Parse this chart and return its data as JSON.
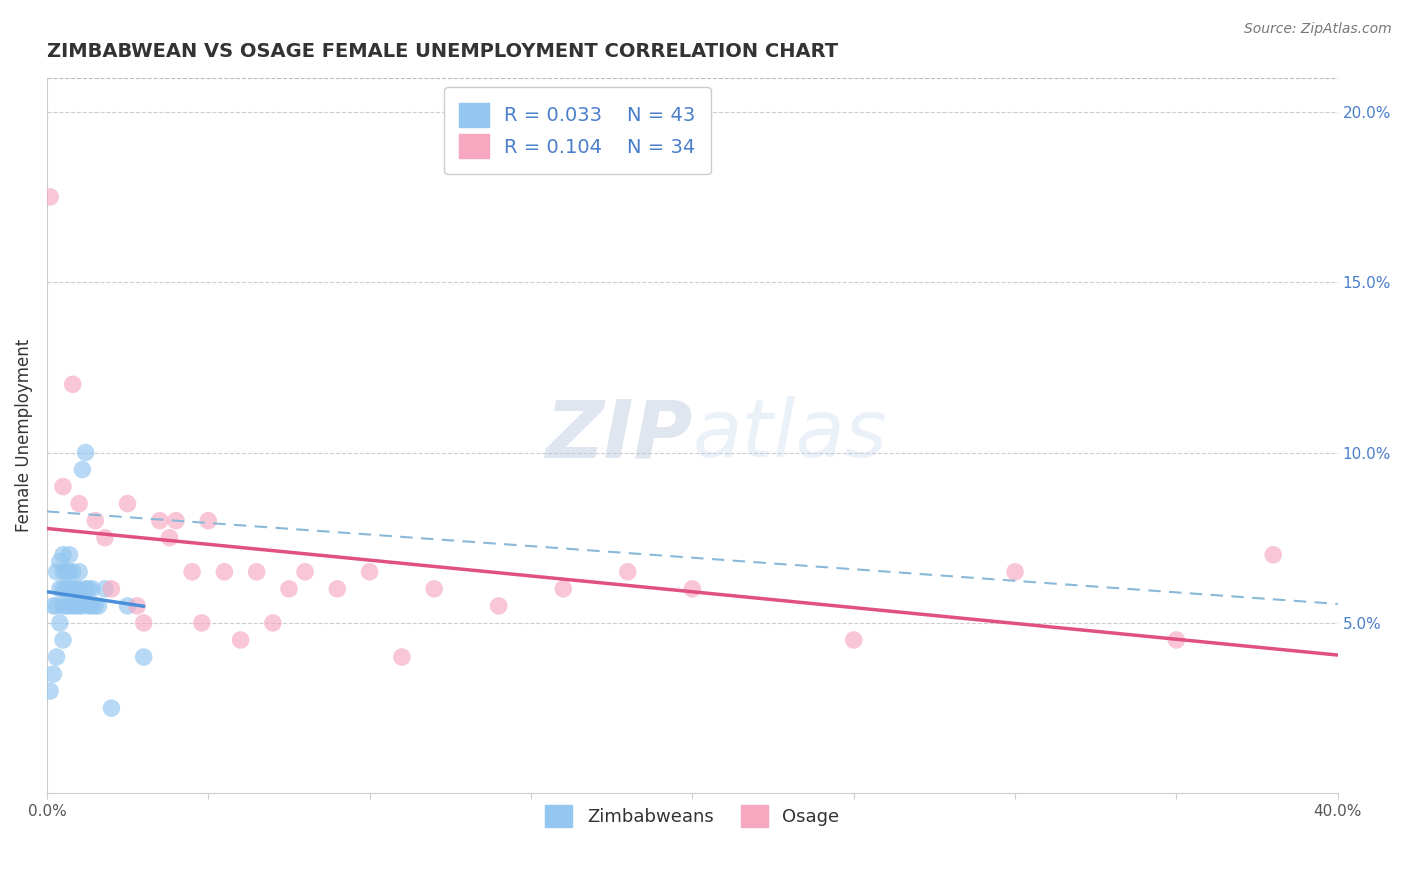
{
  "title": "ZIMBABWEAN VS OSAGE FEMALE UNEMPLOYMENT CORRELATION CHART",
  "source": "Source: ZipAtlas.com",
  "ylabel": "Female Unemployment",
  "xlabel": "",
  "xlim": [
    0.0,
    0.4
  ],
  "ylim": [
    0.0,
    0.21
  ],
  "yticks_right": [
    0.05,
    0.1,
    0.15,
    0.2
  ],
  "ytick_labels_right": [
    "5.0%",
    "10.0%",
    "15.0%",
    "20.0%"
  ],
  "R_blue": 0.033,
  "N_blue": 43,
  "R_pink": 0.104,
  "N_pink": 34,
  "blue_color": "#93c6f0",
  "pink_color": "#f5a8c0",
  "blue_line_color": "#4a90d9",
  "pink_line_color": "#e05080",
  "dashed_line_color": "#8ab8d8",
  "legend_text_color": "#4a7fcb",
  "watermark_color": "#ccd8e8",
  "zimbabwean_x": [
    0.001,
    0.002,
    0.002,
    0.003,
    0.003,
    0.003,
    0.004,
    0.004,
    0.004,
    0.005,
    0.005,
    0.005,
    0.005,
    0.005,
    0.006,
    0.006,
    0.006,
    0.007,
    0.007,
    0.007,
    0.007,
    0.008,
    0.008,
    0.008,
    0.009,
    0.009,
    0.01,
    0.01,
    0.01,
    0.011,
    0.011,
    0.012,
    0.012,
    0.013,
    0.013,
    0.014,
    0.014,
    0.015,
    0.016,
    0.018,
    0.02,
    0.025,
    0.03
  ],
  "zimbabwean_y": [
    0.03,
    0.035,
    0.055,
    0.04,
    0.055,
    0.065,
    0.05,
    0.06,
    0.068,
    0.045,
    0.055,
    0.06,
    0.065,
    0.07,
    0.055,
    0.06,
    0.065,
    0.055,
    0.06,
    0.065,
    0.07,
    0.055,
    0.06,
    0.065,
    0.055,
    0.06,
    0.055,
    0.06,
    0.065,
    0.055,
    0.095,
    0.06,
    0.1,
    0.055,
    0.06,
    0.055,
    0.06,
    0.055,
    0.055,
    0.06,
    0.025,
    0.055,
    0.04
  ],
  "osage_x": [
    0.001,
    0.005,
    0.008,
    0.01,
    0.015,
    0.018,
    0.02,
    0.025,
    0.028,
    0.03,
    0.035,
    0.038,
    0.04,
    0.045,
    0.048,
    0.05,
    0.055,
    0.06,
    0.065,
    0.07,
    0.075,
    0.08,
    0.09,
    0.1,
    0.11,
    0.12,
    0.14,
    0.16,
    0.18,
    0.2,
    0.25,
    0.3,
    0.35,
    0.38
  ],
  "osage_y": [
    0.175,
    0.09,
    0.12,
    0.085,
    0.08,
    0.075,
    0.06,
    0.085,
    0.055,
    0.05,
    0.08,
    0.075,
    0.08,
    0.065,
    0.05,
    0.08,
    0.065,
    0.045,
    0.065,
    0.05,
    0.06,
    0.065,
    0.06,
    0.065,
    0.04,
    0.06,
    0.055,
    0.06,
    0.065,
    0.06,
    0.045,
    0.065,
    0.045,
    0.07
  ]
}
